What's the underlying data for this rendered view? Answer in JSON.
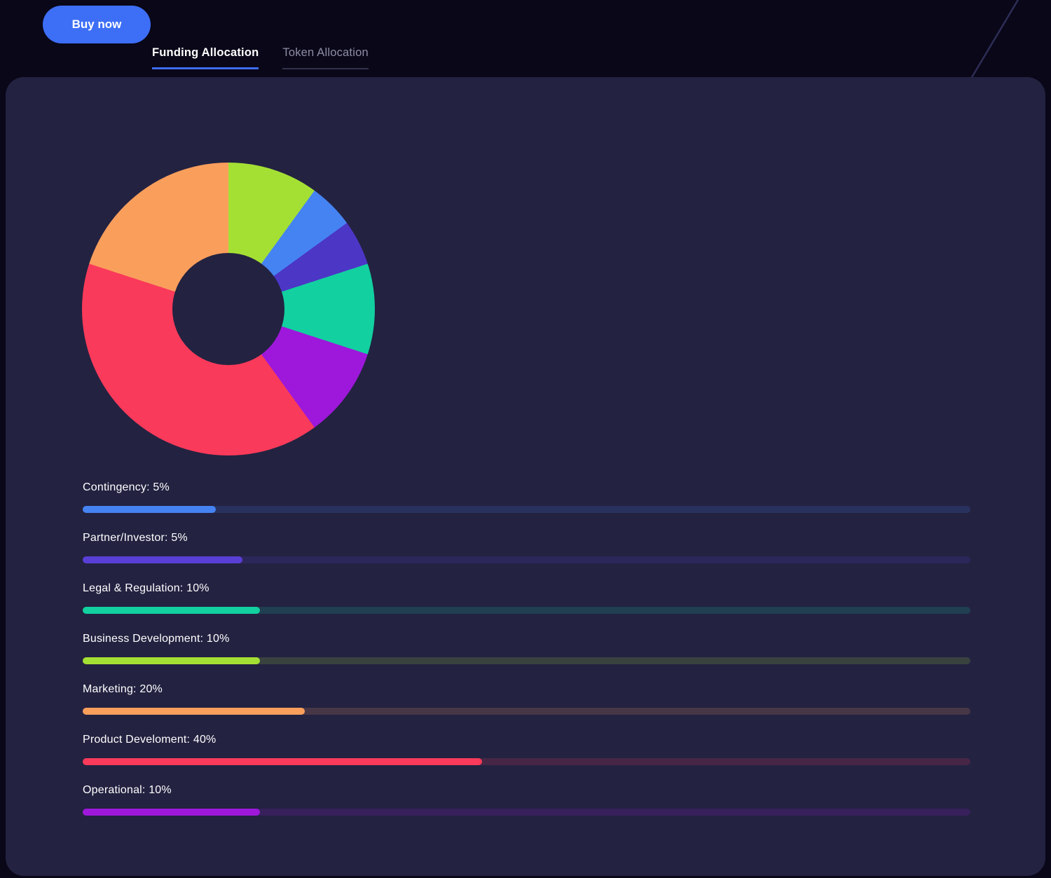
{
  "theme": {
    "page_bg": "#090718",
    "card_bg": "#232241",
    "accent_blue": "#3d6ef6",
    "active_tab_underline": "#3e6cf2",
    "inactive_tab_underline": "#32324d",
    "text": "#ffffff",
    "muted_text": "#8d8da5",
    "track_alpha_hex": "2b"
  },
  "toolbar": {
    "buy_label": "Buy now"
  },
  "tabs": [
    {
      "label": "Funding Allocation",
      "active": true
    },
    {
      "label": "Token Allocation",
      "active": false
    }
  ],
  "chart_data": {
    "type": "pie",
    "style": "donut",
    "title": "Funding Allocation",
    "legend_position": "none",
    "cutout_ratio": 0.39,
    "start_angle_deg": 0,
    "direction": "clockwise",
    "segments": [
      {
        "label": "Business Development",
        "value": 10,
        "color": "#a4e034"
      },
      {
        "label": "Contingency",
        "value": 5,
        "color": "#4583f2"
      },
      {
        "label": "Partner/Investor",
        "value": 5,
        "color": "#4c36c6"
      },
      {
        "label": "Legal & Regulation",
        "value": 10,
        "color": "#12d0a0"
      },
      {
        "label": "Operational",
        "value": 10,
        "color": "#9d18da"
      },
      {
        "label": "Product Develoment",
        "value": 40,
        "color": "#fa3a5a"
      },
      {
        "label": "Marketing",
        "value": 20,
        "color": "#fa9e5c"
      }
    ]
  },
  "bars": [
    {
      "label": "Contingency: 5%",
      "value_pct": 5,
      "color": "#4583f2",
      "fill_fraction_of_track_pct": 15
    },
    {
      "label": "Partner/Investor: 5%",
      "value_pct": 5,
      "color": "#5a3fd6",
      "fill_fraction_of_track_pct": 18
    },
    {
      "label": "Legal & Regulation: 10%",
      "value_pct": 10,
      "color": "#12d0a0",
      "fill_fraction_of_track_pct": 20
    },
    {
      "label": "Business Development: 10%",
      "value_pct": 10,
      "color": "#a4e034",
      "fill_fraction_of_track_pct": 20
    },
    {
      "label": "Marketing: 20%",
      "value_pct": 20,
      "color": "#fa9e5c",
      "fill_fraction_of_track_pct": 25
    },
    {
      "label": "Product Develoment: 40%",
      "value_pct": 40,
      "color": "#fa3a5a",
      "fill_fraction_of_track_pct": 45
    },
    {
      "label": "Operational: 10%",
      "value_pct": 10,
      "color": "#9d18da",
      "fill_fraction_of_track_pct": 20
    }
  ]
}
